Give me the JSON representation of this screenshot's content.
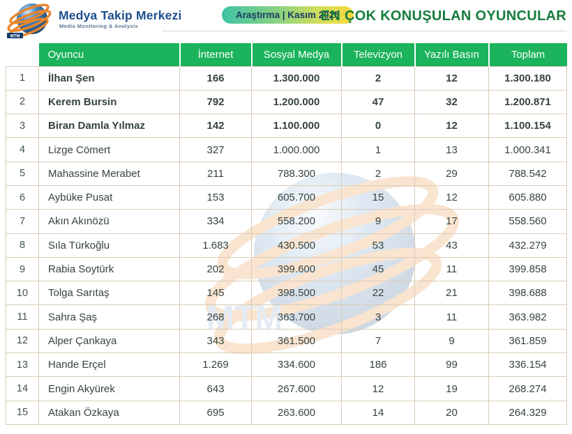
{
  "brand": {
    "name": "Medya Takip Merkezi",
    "tagline": "Media Monitoring & Analysis",
    "logo_label": "MTM"
  },
  "badge": {
    "text": "Araştırma | Kasım 2025"
  },
  "page_title": "EN ÇOK KONUŞULAN OYUNCULAR",
  "watermark": {
    "label": "MTM"
  },
  "colors": {
    "header_green": "#1bb35c",
    "title_green": "#167c3e",
    "brand_navy": "#1e4e8c",
    "row_border": "#d9cbb7",
    "badge_gradient_start": "#3fc3a4",
    "badge_gradient_end": "#f6d93d"
  },
  "table": {
    "columns": [
      "Oyuncu",
      "İnternet",
      "Sosyal Medya",
      "Televizyon",
      "Yazılı Basın",
      "Toplam"
    ],
    "rows": [
      {
        "rank": "1",
        "name": "İlhan Şen",
        "internet": "166",
        "sosyal_medya": "1.300.000",
        "televizyon": "2",
        "yazili_basin": "12",
        "toplam": "1.300.180",
        "bold": true
      },
      {
        "rank": "2",
        "name": "Kerem Bursin",
        "internet": "792",
        "sosyal_medya": "1.200.000",
        "televizyon": "47",
        "yazili_basin": "32",
        "toplam": "1.200.871",
        "bold": true
      },
      {
        "rank": "3",
        "name": "Biran Damla Yılmaz",
        "internet": "142",
        "sosyal_medya": "1.100.000",
        "televizyon": "0",
        "yazili_basin": "12",
        "toplam": "1.100.154",
        "bold": true
      },
      {
        "rank": "4",
        "name": "Lizge Cömert",
        "internet": "327",
        "sosyal_medya": "1.000.000",
        "televizyon": "1",
        "yazili_basin": "13",
        "toplam": "1.000.341",
        "bold": false
      },
      {
        "rank": "5",
        "name": "Mahassine Merabet",
        "internet": "211",
        "sosyal_medya": "788.300",
        "televizyon": "2",
        "yazili_basin": "29",
        "toplam": "788.542",
        "bold": false
      },
      {
        "rank": "6",
        "name": "Aybüke Pusat",
        "internet": "153",
        "sosyal_medya": "605.700",
        "televizyon": "15",
        "yazili_basin": "12",
        "toplam": "605.880",
        "bold": false
      },
      {
        "rank": "7",
        "name": "Akın Akınözü",
        "internet": "334",
        "sosyal_medya": "558.200",
        "televizyon": "9",
        "yazili_basin": "17",
        "toplam": "558.560",
        "bold": false
      },
      {
        "rank": "8",
        "name": "Sıla Türkoğlu",
        "internet": "1.683",
        "sosyal_medya": "430.500",
        "televizyon": "53",
        "yazili_basin": "43",
        "toplam": "432.279",
        "bold": false
      },
      {
        "rank": "9",
        "name": "Rabia Soytürk",
        "internet": "202",
        "sosyal_medya": "399.600",
        "televizyon": "45",
        "yazili_basin": "11",
        "toplam": "399.858",
        "bold": false
      },
      {
        "rank": "10",
        "name": "Tolga Sarıtaş",
        "internet": "145",
        "sosyal_medya": "398.500",
        "televizyon": "22",
        "yazili_basin": "21",
        "toplam": "398.688",
        "bold": false
      },
      {
        "rank": "11",
        "name": "Sahra Şaş",
        "internet": "268",
        "sosyal_medya": "363.700",
        "televizyon": "3",
        "yazili_basin": "11",
        "toplam": "363.982",
        "bold": false
      },
      {
        "rank": "12",
        "name": "Alper Çankaya",
        "internet": "343",
        "sosyal_medya": "361.500",
        "televizyon": "7",
        "yazili_basin": "9",
        "toplam": "361.859",
        "bold": false
      },
      {
        "rank": "13",
        "name": "Hande Erçel",
        "internet": "1.269",
        "sosyal_medya": "334.600",
        "televizyon": "186",
        "yazili_basin": "99",
        "toplam": "336.154",
        "bold": false
      },
      {
        "rank": "14",
        "name": "Engin Akyürek",
        "internet": "643",
        "sosyal_medya": "267.600",
        "televizyon": "12",
        "yazili_basin": "19",
        "toplam": "268.274",
        "bold": false
      },
      {
        "rank": "15",
        "name": "Atakan Özkaya",
        "internet": "695",
        "sosyal_medya": "263.600",
        "televizyon": "14",
        "yazili_basin": "20",
        "toplam": "264.329",
        "bold": false
      }
    ]
  }
}
